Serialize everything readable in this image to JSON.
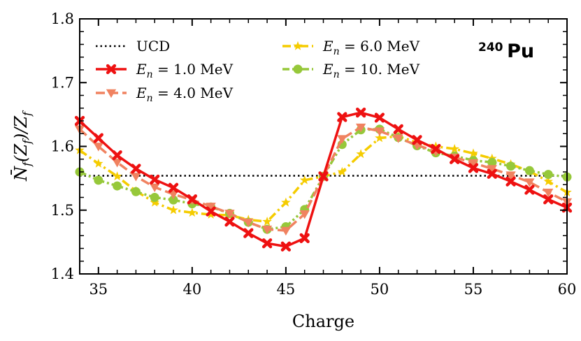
{
  "chart_data": {
    "type": "line",
    "title": "",
    "annotation": {
      "mass": "240",
      "element": "Pu"
    },
    "xlabel": "Charge",
    "ylabel": "N̄_f(Z_f)/Z_f",
    "xlim": [
      34,
      60
    ],
    "ylim": [
      1.4,
      1.8
    ],
    "xticks": [
      35,
      40,
      45,
      50,
      55,
      60
    ],
    "yticks": [
      1.4,
      1.5,
      1.6,
      1.7,
      1.8
    ],
    "xtick_labels": [
      "35",
      "40",
      "45",
      "50",
      "55",
      "60"
    ],
    "ytick_labels": [
      "1.4",
      "1.5",
      "1.6",
      "1.7",
      "1.8"
    ],
    "reference_line": {
      "name": "UCD",
      "value": 1.554,
      "color": "#000000",
      "style": "dotted"
    },
    "legend": {
      "placement": "top-left",
      "entries": [
        {
          "key": "ucd",
          "label": "UCD"
        },
        {
          "key": "e10",
          "label": "E_n = 1.0 MeV"
        },
        {
          "key": "e40",
          "label": "E_n = 4.0 MeV"
        },
        {
          "key": "e60",
          "label": "E_n = 6.0 MeV"
        },
        {
          "key": "e100",
          "label": "E_n = 10. MeV"
        }
      ]
    },
    "x": [
      34,
      35,
      36,
      37,
      38,
      39,
      40,
      41,
      42,
      43,
      44,
      45,
      46,
      47,
      48,
      49,
      50,
      51,
      52,
      53,
      54,
      55,
      56,
      57,
      58,
      59,
      60
    ],
    "series": [
      {
        "key": "e10",
        "name": "E_n = 1.0 MeV",
        "color": "#ee1111",
        "marker": "x",
        "linestyle": "solid",
        "values": [
          1.64,
          1.613,
          1.586,
          1.565,
          1.548,
          1.535,
          1.517,
          1.498,
          1.482,
          1.464,
          1.448,
          1.443,
          1.456,
          1.553,
          1.646,
          1.653,
          1.645,
          1.627,
          1.61,
          1.596,
          1.58,
          1.566,
          1.557,
          1.545,
          1.532,
          1.517,
          1.504
        ]
      },
      {
        "key": "e40",
        "name": "E_n = 4.0 MeV",
        "color": "#f08260",
        "marker": "triangle-down",
        "linestyle": "dashed",
        "values": [
          1.627,
          1.6,
          1.575,
          1.553,
          1.536,
          1.525,
          1.516,
          1.506,
          1.495,
          1.481,
          1.47,
          1.468,
          1.494,
          1.553,
          1.612,
          1.63,
          1.624,
          1.613,
          1.602,
          1.592,
          1.583,
          1.574,
          1.565,
          1.555,
          1.544,
          1.528,
          1.513
        ]
      },
      {
        "key": "e60",
        "name": "E_n = 6.0 MeV",
        "color": "#f5cc00",
        "marker": "star",
        "linestyle": "dashdot",
        "values": [
          1.594,
          1.573,
          1.553,
          1.53,
          1.512,
          1.5,
          1.496,
          1.493,
          1.492,
          1.485,
          1.482,
          1.512,
          1.547,
          1.553,
          1.56,
          1.588,
          1.613,
          1.616,
          1.606,
          1.6,
          1.596,
          1.589,
          1.581,
          1.572,
          1.561,
          1.545,
          1.528
        ]
      },
      {
        "key": "e100",
        "name": "E_n = 10. MeV",
        "color": "#96c83a",
        "marker": "circle",
        "linestyle": "dashdotdot",
        "values": [
          1.56,
          1.547,
          1.538,
          1.529,
          1.52,
          1.516,
          1.51,
          1.505,
          1.495,
          1.481,
          1.47,
          1.474,
          1.501,
          1.553,
          1.603,
          1.626,
          1.627,
          1.614,
          1.601,
          1.59,
          1.585,
          1.578,
          1.575,
          1.569,
          1.562,
          1.556,
          1.552
        ]
      }
    ]
  }
}
